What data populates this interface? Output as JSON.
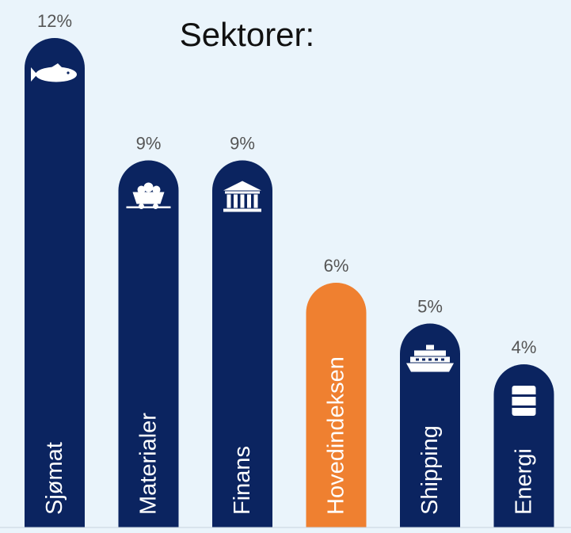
{
  "chart_data": {
    "type": "bar",
    "title": "Sektorer:",
    "categories": [
      "Sjømat",
      "Materialer",
      "Finans",
      "Hovedindeksen",
      "Shipping",
      "Energi"
    ],
    "values": [
      12,
      9,
      9,
      6,
      5,
      4
    ],
    "value_labels": [
      "12%",
      "9%",
      "9%",
      "6%",
      "5%",
      "4%"
    ],
    "icons": [
      "fish-icon",
      "mine-cart-icon",
      "bank-icon",
      "",
      "ship-icon",
      "oil-barrel-icon"
    ],
    "bar_colors": [
      "#0b2460",
      "#0b2460",
      "#0b2460",
      "#ef8030",
      "#0b2460",
      "#0b2460"
    ],
    "ylim": [
      0,
      12
    ],
    "xlabel": "",
    "ylabel": "",
    "grid": false,
    "legend": "none"
  },
  "colors": {
    "background": "#eaf4fb",
    "bar": "#0b2460",
    "highlight": "#ef8030",
    "value_text": "#555555",
    "title_text": "#111111",
    "bar_label_text": "#ffffff",
    "baseline": "#c8d4de"
  }
}
